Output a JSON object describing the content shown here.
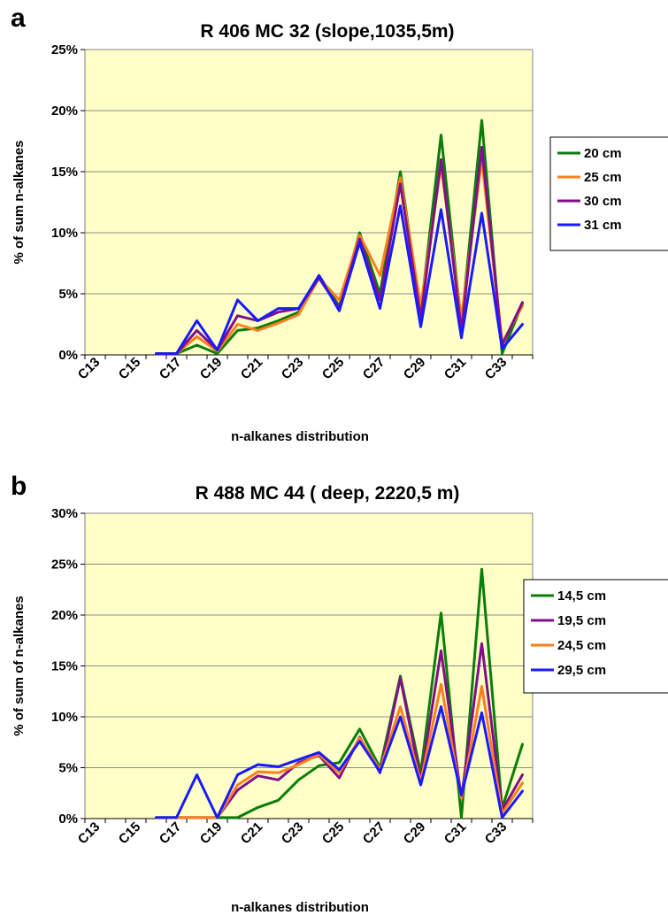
{
  "chart_data": [
    {
      "panel": "a",
      "type": "line",
      "title": "R 406 MC 32 (slope,1035,5m)",
      "xlabel": "n-alkanes distribution",
      "ylabel": "% of sum n-alkanes",
      "yticks": [
        "0%",
        "5%",
        "10%",
        "15%",
        "20%",
        "25%"
      ],
      "ylim": [
        0,
        25
      ],
      "grid": true,
      "legend_position": "right",
      "background": "#ffffc8",
      "categories": [
        "C13",
        "C14",
        "C15",
        "C16",
        "C17",
        "C18",
        "C19",
        "C20",
        "C21",
        "C22",
        "C23",
        "C24",
        "C25",
        "C26",
        "C27",
        "C28",
        "C29",
        "C30",
        "C31",
        "C32",
        "C33",
        "C34"
      ],
      "tick_labels": [
        "C13",
        "C15",
        "C17",
        "C19",
        "C21",
        "C23",
        "C25",
        "C27",
        "C29",
        "C31",
        "C33"
      ],
      "series": [
        {
          "name": "20 cm",
          "color": "#0a7d0a",
          "values": [
            null,
            null,
            null,
            0.1,
            0.1,
            0.8,
            0.1,
            2.0,
            2.2,
            2.8,
            3.5,
            6.5,
            4.0,
            10.0,
            5.0,
            15.0,
            3.5,
            18.0,
            2.5,
            19.2,
            0.1,
            4.2
          ]
        },
        {
          "name": "25 cm",
          "color": "#ff7f1e",
          "values": [
            null,
            null,
            null,
            0.1,
            0.1,
            1.5,
            0.3,
            2.5,
            2.0,
            2.6,
            3.3,
            6.3,
            4.5,
            9.8,
            6.5,
            14.5,
            4.0,
            15.5,
            3.0,
            16.0,
            1.0,
            4.0
          ]
        },
        {
          "name": "30 cm",
          "color": "#80108a",
          "values": [
            null,
            null,
            null,
            0.1,
            0.1,
            2.0,
            0.4,
            3.2,
            2.8,
            3.5,
            3.8,
            6.3,
            3.8,
            9.5,
            4.5,
            14.0,
            3.0,
            16.0,
            2.0,
            17.0,
            0.8,
            4.3
          ]
        },
        {
          "name": "31 cm",
          "color": "#1a1aff",
          "values": [
            null,
            null,
            null,
            0.1,
            0.1,
            2.8,
            0.4,
            4.5,
            2.8,
            3.8,
            3.8,
            6.5,
            3.6,
            9.2,
            3.8,
            12.2,
            2.3,
            11.9,
            1.4,
            11.6,
            0.5,
            2.5
          ]
        }
      ]
    },
    {
      "panel": "b",
      "type": "line",
      "title": "R 488 MC 44 ( deep,  2220,5 m)",
      "xlabel": "n-alkanes distribution",
      "ylabel": "% of sum of n-alkanes",
      "yticks": [
        "0%",
        "5%",
        "10%",
        "15%",
        "20%",
        "25%",
        "30%"
      ],
      "ylim": [
        0,
        30
      ],
      "grid": true,
      "legend_position": "right",
      "background": "#ffffc8",
      "categories": [
        "C13",
        "C14",
        "C15",
        "C16",
        "C17",
        "C18",
        "C19",
        "C20",
        "C21",
        "C22",
        "C23",
        "C24",
        "C25",
        "C26",
        "C27",
        "C28",
        "C29",
        "C30",
        "C31",
        "C32",
        "C33",
        "C34"
      ],
      "tick_labels": [
        "C13",
        "C15",
        "C17",
        "C19",
        "C21",
        "C23",
        "C25",
        "C27",
        "C29",
        "C31",
        "C33"
      ],
      "series": [
        {
          "name": "14,5 cm",
          "color": "#0a7d0a",
          "values": [
            null,
            null,
            null,
            0.1,
            0.1,
            0.1,
            0.1,
            0.1,
            1.1,
            1.8,
            3.8,
            5.2,
            5.5,
            8.8,
            5.0,
            14.0,
            4.5,
            20.2,
            0.1,
            24.5,
            1.0,
            7.3
          ]
        },
        {
          "name": "19,5 cm",
          "color": "#80108a",
          "values": [
            null,
            null,
            null,
            0.1,
            0.1,
            0.1,
            0.1,
            2.8,
            4.2,
            3.8,
            5.5,
            6.2,
            4.0,
            8.0,
            4.5,
            13.8,
            3.8,
            16.5,
            2.0,
            17.2,
            0.8,
            4.3
          ]
        },
        {
          "name": "24,5 cm",
          "color": "#ff7f1e",
          "values": [
            null,
            null,
            null,
            0.1,
            0.1,
            0.1,
            0.1,
            3.3,
            4.6,
            4.5,
            5.3,
            6.3,
            4.5,
            7.9,
            4.8,
            11.0,
            3.6,
            13.2,
            2.0,
            13.0,
            0.5,
            3.5
          ]
        },
        {
          "name": "29,5 cm",
          "color": "#1a1aff",
          "values": [
            null,
            null,
            null,
            0.1,
            0.1,
            4.3,
            0.1,
            4.3,
            5.3,
            5.1,
            5.8,
            6.5,
            4.8,
            7.6,
            4.6,
            10.0,
            3.3,
            11.0,
            2.3,
            10.4,
            0.1,
            2.7
          ]
        }
      ]
    }
  ]
}
